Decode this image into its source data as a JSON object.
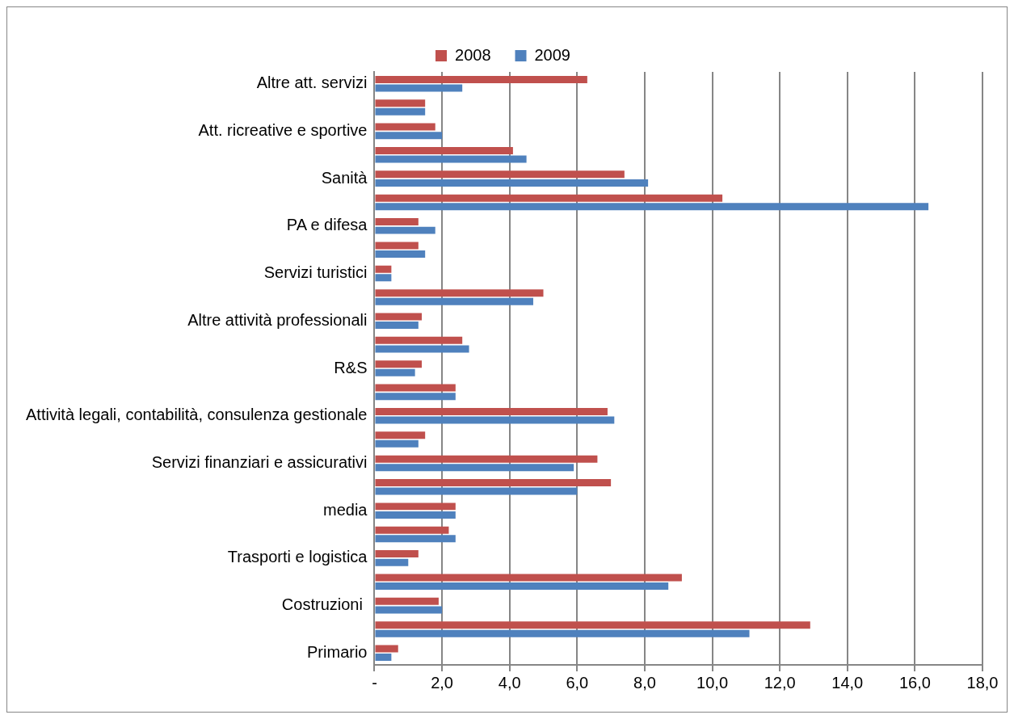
{
  "chart_data": {
    "type": "bar",
    "orientation": "horizontal",
    "categories": [
      "Altre att. servizi",
      null,
      "Att. ricreative e sportive",
      null,
      "Sanità",
      null,
      "PA e difesa",
      null,
      "Servizi turistici",
      null,
      "Altre attività professionali",
      null,
      "R&S",
      null,
      "Attività legali, contabilità, consulenza gestionale",
      null,
      "Servizi finanziari e assicurativi",
      null,
      "media",
      null,
      "Trasporti e logistica",
      null,
      "Costruzioni ",
      null,
      "Primario"
    ],
    "series": [
      {
        "name": "2008",
        "color": "#c0504d",
        "values": [
          6.3,
          1.5,
          1.8,
          4.1,
          7.4,
          10.3,
          1.3,
          1.3,
          0.5,
          5.0,
          1.4,
          2.6,
          1.4,
          2.4,
          6.9,
          1.5,
          6.6,
          7.0,
          2.4,
          2.2,
          1.3,
          9.1,
          1.9,
          12.9,
          0.7
        ]
      },
      {
        "name": "2009",
        "color": "#4f81bd",
        "values": [
          2.6,
          1.5,
          2.0,
          4.5,
          8.1,
          16.4,
          1.8,
          1.5,
          0.5,
          4.7,
          1.3,
          2.8,
          1.2,
          2.4,
          7.1,
          1.3,
          5.9,
          6.0,
          2.4,
          2.4,
          1.0,
          8.7,
          2.0,
          11.1,
          0.5
        ]
      }
    ],
    "xlim": [
      0,
      18
    ],
    "xticks": [
      {
        "value": 0,
        "label": "-"
      },
      {
        "value": 2,
        "label": "2,0"
      },
      {
        "value": 4,
        "label": "4,0"
      },
      {
        "value": 6,
        "label": "6,0"
      },
      {
        "value": 8,
        "label": "8,0"
      },
      {
        "value": 10,
        "label": "10,0"
      },
      {
        "value": 12,
        "label": "12,0"
      },
      {
        "value": 14,
        "label": "14,0"
      },
      {
        "value": 16,
        "label": "16,0"
      },
      {
        "value": 18,
        "label": "18,0"
      }
    ],
    "grid": "x",
    "legend": "top"
  }
}
